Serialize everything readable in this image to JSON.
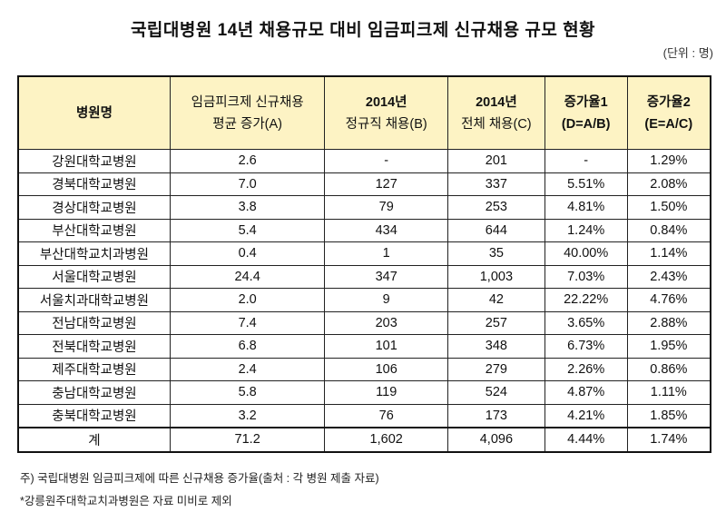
{
  "title": "국립대병원 14년 채용규모 대비 임금피크제 신규채용 규모 현황",
  "unit": "(단위 : 명)",
  "columns": [
    {
      "line1": "병원명",
      "line2": ""
    },
    {
      "line1": "임금피크제 신규채용",
      "line2": "평균 증가(A)"
    },
    {
      "line1": "2014년",
      "line2": "정규직 채용(B)"
    },
    {
      "line1": "2014년",
      "line2": "전체 채용(C)"
    },
    {
      "line1": "증가율1",
      "line2": "(D=A/B)"
    },
    {
      "line1": "증가율2",
      "line2": "(E=A/C)"
    }
  ],
  "rows": [
    [
      "강원대학교병원",
      "2.6",
      "-",
      "201",
      "-",
      "1.29%"
    ],
    [
      "경북대학교병원",
      "7.0",
      "127",
      "337",
      "5.51%",
      "2.08%"
    ],
    [
      "경상대학교병원",
      "3.8",
      "79",
      "253",
      "4.81%",
      "1.50%"
    ],
    [
      "부산대학교병원",
      "5.4",
      "434",
      "644",
      "1.24%",
      "0.84%"
    ],
    [
      "부산대학교치과병원",
      "0.4",
      "1",
      "35",
      "40.00%",
      "1.14%"
    ],
    [
      "서울대학교병원",
      "24.4",
      "347",
      "1,003",
      "7.03%",
      "2.43%"
    ],
    [
      "서울치과대학교병원",
      "2.0",
      "9",
      "42",
      "22.22%",
      "4.76%"
    ],
    [
      "전남대학교병원",
      "7.4",
      "203",
      "257",
      "3.65%",
      "2.88%"
    ],
    [
      "전북대학교병원",
      "6.8",
      "101",
      "348",
      "6.73%",
      "1.95%"
    ],
    [
      "제주대학교병원",
      "2.4",
      "106",
      "279",
      "2.26%",
      "0.86%"
    ],
    [
      "충남대학교병원",
      "5.8",
      "119",
      "524",
      "4.87%",
      "1.11%"
    ],
    [
      "충북대학교병원",
      "3.2",
      "76",
      "173",
      "4.21%",
      "1.85%"
    ]
  ],
  "total": [
    "계",
    "71.2",
    "1,602",
    "4,096",
    "4.44%",
    "1.74%"
  ],
  "notes": [
    "주) 국립대병원 임금피크제에 따른 신규채용 증가율(출처 : 각 병원 제출 자료)",
    "*강릉원주대학교치과병원은 자료 미비로 제외"
  ]
}
